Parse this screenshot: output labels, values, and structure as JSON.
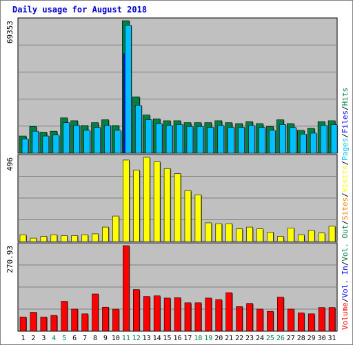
{
  "chart_data": {
    "type": "bar",
    "title": "Daily usage for August 2018",
    "categories": [
      "1",
      "2",
      "3",
      "4",
      "5",
      "6",
      "7",
      "8",
      "9",
      "10",
      "11",
      "12",
      "13",
      "14",
      "15",
      "16",
      "17",
      "18",
      "19",
      "20",
      "21",
      "22",
      "23",
      "24",
      "25",
      "26",
      "27",
      "28",
      "29",
      "30",
      "31"
    ],
    "weekend_days": [
      "4",
      "5",
      "11",
      "12",
      "18",
      "19",
      "25",
      "26"
    ],
    "panels": [
      {
        "name": "top",
        "max_label": "69353",
        "ylim": [
          0,
          69353
        ],
        "series": [
          {
            "name": "Hits",
            "color": "#008040",
            "values": [
              9000,
              14000,
              11000,
              11500,
              18500,
              17000,
              14500,
              16000,
              17500,
              14500,
              69353,
              29500,
              20000,
              18000,
              17000,
              17000,
              16000,
              16000,
              16000,
              17000,
              16000,
              15500,
              16500,
              15500,
              14000,
              17500,
              15500,
              12000,
              13000,
              16500,
              17000
            ]
          },
          {
            "name": "Files",
            "color": "#0000ff",
            "values": [
              0,
              0,
              0,
              0,
              0,
              0,
              0,
              0,
              0,
              0,
              52000,
              0,
              0,
              0,
              0,
              0,
              0,
              0,
              0,
              0,
              0,
              0,
              0,
              0,
              0,
              0,
              0,
              0,
              0,
              0,
              0
            ]
          },
          {
            "name": "Pages",
            "color": "#00c0ff",
            "values": [
              7500,
              11500,
              9000,
              9500,
              16000,
              14500,
              12000,
              13500,
              14500,
              12000,
              67000,
              25000,
              17500,
              15500,
              14500,
              15000,
              14000,
              14000,
              13500,
              14500,
              13500,
              13500,
              14500,
              13500,
              12000,
              15000,
              13500,
              10000,
              10500,
              14500,
              15000
            ]
          }
        ]
      },
      {
        "name": "middle",
        "max_label": "496",
        "ylim": [
          0,
          496
        ],
        "series": [
          {
            "name": "Visits",
            "color": "#ffff00",
            "values": [
              40,
              20,
              30,
              40,
              35,
              35,
              40,
              45,
              85,
              150,
              480,
              420,
              496,
              470,
              430,
              400,
              300,
              275,
              110,
              105,
              105,
              75,
              85,
              75,
              55,
              30,
              80,
              40,
              65,
              50,
              90
            ]
          },
          {
            "name": "Sites",
            "color": "#ff8000",
            "values": [
              0,
              0,
              0,
              0,
              0,
              0,
              0,
              0,
              0,
              0,
              0,
              0,
              0,
              0,
              0,
              0,
              0,
              0,
              0,
              0,
              0,
              0,
              0,
              0,
              0,
              0,
              0,
              0,
              0,
              0,
              0
            ]
          }
        ]
      },
      {
        "name": "bottom",
        "max_label": "270.93",
        "ylim": [
          0,
          270.93
        ],
        "series": [
          {
            "name": "Volume",
            "color": "#ff0000",
            "values": [
              45,
              60,
              45,
              50,
              95,
              70,
              55,
              118,
              76,
              70,
              270.93,
              132,
              110,
              112,
              105,
              106,
              90,
              90,
              105,
              100,
              122,
              78,
              88,
              70,
              63,
              108,
              70,
              58,
              55,
              75,
              75
            ]
          }
        ]
      }
    ],
    "legend_right": [
      {
        "text": "Hits",
        "color": "#008040"
      },
      {
        "text": "/",
        "color": "#000000"
      },
      {
        "text": "Files",
        "color": "#0000ff"
      },
      {
        "text": "/",
        "color": "#000000"
      },
      {
        "text": "Pages",
        "color": "#00c0ff"
      },
      {
        "text": "/",
        "color": "#000000"
      },
      {
        "text": "Visits",
        "color": "#ffff00"
      },
      {
        "text": "/",
        "color": "#000000"
      },
      {
        "text": "Sites",
        "color": "#ff8000"
      },
      {
        "text": "/",
        "color": "#000000"
      },
      {
        "text": "Vol. Out",
        "color": "#008040"
      },
      {
        "text": "/",
        "color": "#000000"
      },
      {
        "text": "Vol. In",
        "color": "#0000ff"
      },
      {
        "text": "/",
        "color": "#000000"
      },
      {
        "text": "Volume",
        "color": "#ff0000"
      }
    ],
    "grid": true
  }
}
